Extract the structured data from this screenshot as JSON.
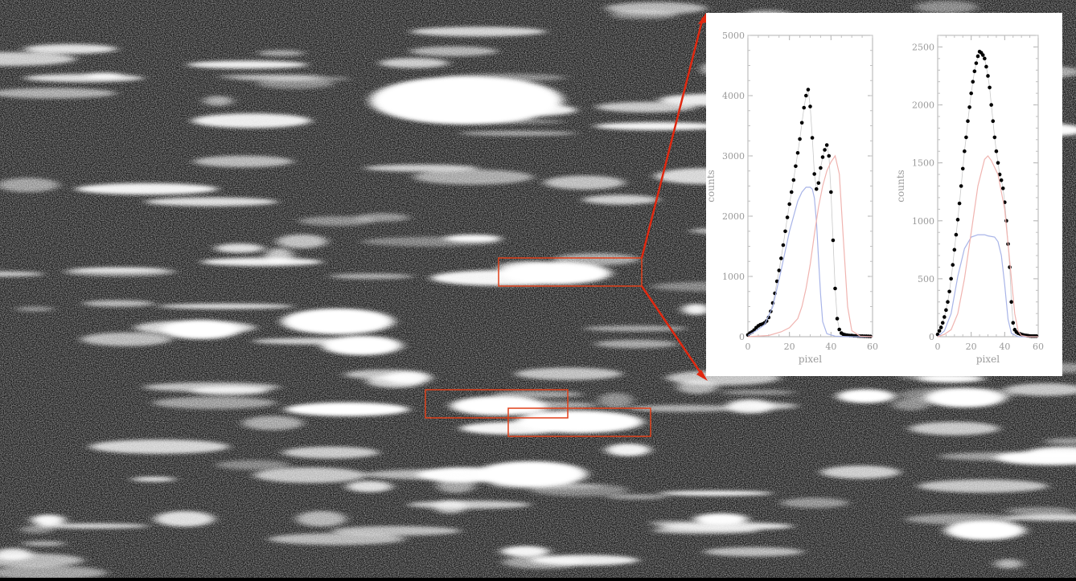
{
  "image": {
    "description_colors": {
      "background": "#1a1a1a",
      "streak": "#ffffff",
      "highlight_box": "#e0401a",
      "zoom_line": "#e02810"
    }
  },
  "chart_data": [
    {
      "type": "line",
      "xlabel": "pixel",
      "ylabel": "counts",
      "xlim": [
        0,
        60
      ],
      "ylim": [
        0,
        5000
      ],
      "x_ticks": [
        "0",
        "20",
        "40",
        "60"
      ],
      "y_ticks": [
        "0",
        "1000",
        "2000",
        "3000",
        "4000",
        "5000"
      ],
      "series": [
        {
          "role": "data points",
          "color": "#000000",
          "x": [
            0,
            1,
            2,
            3,
            4,
            5,
            6,
            7,
            8,
            9,
            10,
            11,
            12,
            13,
            14,
            15,
            16,
            17,
            18,
            19,
            20,
            21,
            22,
            23,
            24,
            25,
            26,
            27,
            28,
            29,
            30,
            31,
            32,
            33,
            34,
            35,
            36,
            37,
            38,
            39,
            40,
            41,
            42,
            43,
            44,
            45,
            46,
            47,
            48,
            49,
            50,
            51,
            52,
            53,
            54,
            55,
            56,
            57,
            58,
            59
          ],
          "values": [
            30,
            60,
            80,
            110,
            150,
            180,
            200,
            210,
            230,
            260,
            320,
            420,
            560,
            720,
            920,
            1100,
            1300,
            1520,
            1750,
            1980,
            2200,
            2400,
            2600,
            2830,
            3050,
            3280,
            3550,
            3800,
            4000,
            4100,
            3820,
            3300,
            2700,
            2450,
            2550,
            2800,
            2980,
            3100,
            3180,
            3000,
            2400,
            1600,
            800,
            300,
            120,
            60,
            40,
            30,
            25,
            20,
            20,
            15,
            15,
            12,
            10,
            10,
            8,
            8,
            6,
            5
          ]
        },
        {
          "role": "component 1",
          "color": "#a8b4e8",
          "x": [
            0,
            4,
            8,
            12,
            16,
            20,
            24,
            26,
            28,
            30,
            31,
            32,
            33,
            34,
            35,
            36,
            38,
            42,
            50,
            60
          ],
          "values": [
            20,
            100,
            200,
            500,
            1100,
            1750,
            2250,
            2400,
            2480,
            2480,
            2450,
            2300,
            1900,
            1300,
            700,
            250,
            50,
            10,
            0,
            0
          ]
        },
        {
          "role": "component 2",
          "color": "#f0b4b0",
          "x": [
            0,
            10,
            16,
            20,
            24,
            26,
            28,
            30,
            32,
            34,
            36,
            38,
            40,
            42,
            44,
            46,
            48,
            50,
            54,
            60
          ],
          "values": [
            0,
            20,
            80,
            150,
            300,
            500,
            800,
            1200,
            1700,
            2150,
            2500,
            2750,
            2900,
            3000,
            2700,
            1600,
            500,
            100,
            10,
            0
          ]
        }
      ]
    },
    {
      "type": "line",
      "xlabel": "pixel",
      "ylabel": "counts",
      "xlim": [
        0,
        60
      ],
      "ylim": [
        0,
        2600
      ],
      "x_ticks": [
        "0",
        "20",
        "40",
        "60"
      ],
      "y_ticks": [
        "0",
        "500",
        "1000",
        "1500",
        "2000",
        "2500"
      ],
      "series": [
        {
          "role": "data points",
          "color": "#000000",
          "x": [
            0,
            1,
            2,
            3,
            4,
            5,
            6,
            7,
            8,
            9,
            10,
            11,
            12,
            13,
            14,
            15,
            16,
            17,
            18,
            19,
            20,
            21,
            22,
            23,
            24,
            25,
            26,
            27,
            28,
            29,
            30,
            31,
            32,
            33,
            34,
            35,
            36,
            37,
            38,
            39,
            40,
            41,
            42,
            43,
            44,
            45,
            46,
            47,
            48,
            49,
            50,
            51,
            52,
            53,
            54,
            55,
            56,
            57,
            58,
            59
          ],
          "values": [
            20,
            50,
            80,
            120,
            170,
            230,
            300,
            390,
            500,
            620,
            750,
            880,
            1010,
            1150,
            1300,
            1450,
            1600,
            1720,
            1860,
            1980,
            2100,
            2200,
            2290,
            2360,
            2420,
            2460,
            2450,
            2430,
            2400,
            2330,
            2250,
            2150,
            2000,
            1860,
            1720,
            1600,
            1500,
            1400,
            1350,
            1280,
            1160,
            1000,
            800,
            600,
            300,
            120,
            60,
            40,
            30,
            25,
            20,
            15,
            12,
            10,
            8,
            6,
            5,
            5,
            5,
            5
          ]
        },
        {
          "role": "component 1",
          "color": "#a8b4e8",
          "x": [
            0,
            4,
            8,
            12,
            16,
            20,
            24,
            28,
            30,
            34,
            36,
            38,
            40,
            42,
            44,
            48,
            60
          ],
          "values": [
            0,
            50,
            200,
            520,
            760,
            860,
            880,
            880,
            870,
            860,
            820,
            700,
            450,
            150,
            30,
            0,
            0
          ]
        },
        {
          "role": "component 2",
          "color": "#f0b4b0",
          "x": [
            0,
            4,
            8,
            12,
            16,
            20,
            24,
            28,
            30,
            32,
            36,
            40,
            44,
            46,
            48,
            50,
            54,
            60
          ],
          "values": [
            0,
            20,
            60,
            200,
            500,
            900,
            1300,
            1530,
            1560,
            1520,
            1400,
            1100,
            500,
            200,
            50,
            10,
            0,
            0
          ]
        }
      ]
    }
  ]
}
